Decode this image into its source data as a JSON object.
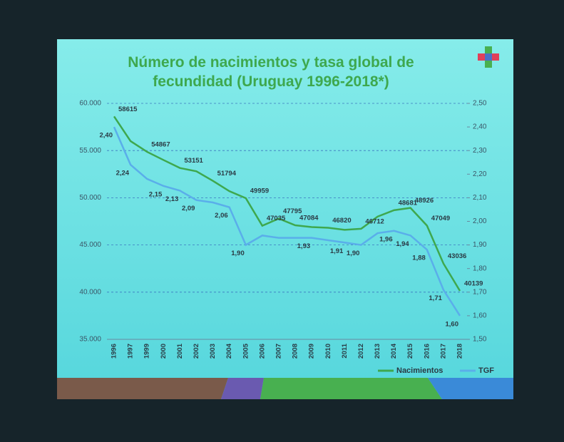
{
  "chart_data": {
    "type": "line",
    "title": "Número de nacimientos  y tasa global de fecundidad (Uruguay 1996-2018*)",
    "categories": [
      "1996",
      "1997",
      "1999",
      "2000",
      "2001",
      "2002",
      "2003",
      "2004",
      "2005",
      "2006",
      "2007",
      "2008",
      "2009",
      "2010",
      "2011",
      "2012",
      "2013",
      "2014",
      "2015",
      "2016",
      "2017",
      "2018"
    ],
    "series": [
      {
        "name": "Nacimientos",
        "color": "#3ea84e",
        "values": [
          58615,
          56000,
          54867,
          54000,
          53151,
          52800,
          51794,
          50700,
          49959,
          47035,
          47795,
          47084,
          46900,
          46820,
          46600,
          46712,
          48000,
          48681,
          48926,
          47049,
          43036,
          40139
        ],
        "value_labels": [
          "58615",
          null,
          "54867",
          null,
          "53151",
          null,
          "51794",
          null,
          "49959",
          "47035",
          "47795",
          "47084",
          null,
          "46820",
          null,
          "46712",
          null,
          "48681",
          "48926",
          "47049",
          "43036",
          "40139"
        ]
      },
      {
        "name": "TGF",
        "color": "#5aaeea",
        "axis": "y2",
        "values": [
          2.4,
          2.24,
          2.18,
          2.15,
          2.13,
          2.09,
          2.08,
          2.06,
          1.9,
          1.94,
          1.93,
          1.93,
          1.93,
          1.92,
          1.91,
          1.9,
          1.95,
          1.96,
          1.94,
          1.88,
          1.71,
          1.6
        ],
        "value_labels": [
          "2,40",
          "2,24",
          null,
          "2,15",
          "2,13",
          "2,09",
          null,
          "2,06",
          "1,90",
          null,
          null,
          null,
          "1,93",
          null,
          "1,91",
          "1,90",
          null,
          "1,96",
          "1,94",
          "1,88",
          "1,71",
          "1,60"
        ]
      }
    ],
    "ylim": [
      35000,
      60000
    ],
    "yticks": [
      {
        "value": 35000,
        "label": "35.000"
      },
      {
        "value": 40000,
        "label": "40.000"
      },
      {
        "value": 45000,
        "label": "45.000"
      },
      {
        "value": 50000,
        "label": "50.000"
      },
      {
        "value": 55000,
        "label": "55.000"
      },
      {
        "value": 60000,
        "label": "60.000"
      }
    ],
    "y2lim": [
      1.5,
      2.5
    ],
    "y2ticks": [
      {
        "value": 1.5,
        "label": "1,50"
      },
      {
        "value": 1.6,
        "label": "1,60"
      },
      {
        "value": 1.7,
        "label": "1,70"
      },
      {
        "value": 1.8,
        "label": "1,80"
      },
      {
        "value": 1.9,
        "label": "1,90"
      },
      {
        "value": 2.0,
        "label": "2,00"
      },
      {
        "value": 2.1,
        "label": "2,10"
      },
      {
        "value": 2.2,
        "label": "2,20"
      },
      {
        "value": 2.3,
        "label": "2,30"
      },
      {
        "value": 2.4,
        "label": "2,40"
      },
      {
        "value": 2.5,
        "label": "2,50"
      }
    ],
    "grid": true,
    "legend": "bottom-right"
  }
}
